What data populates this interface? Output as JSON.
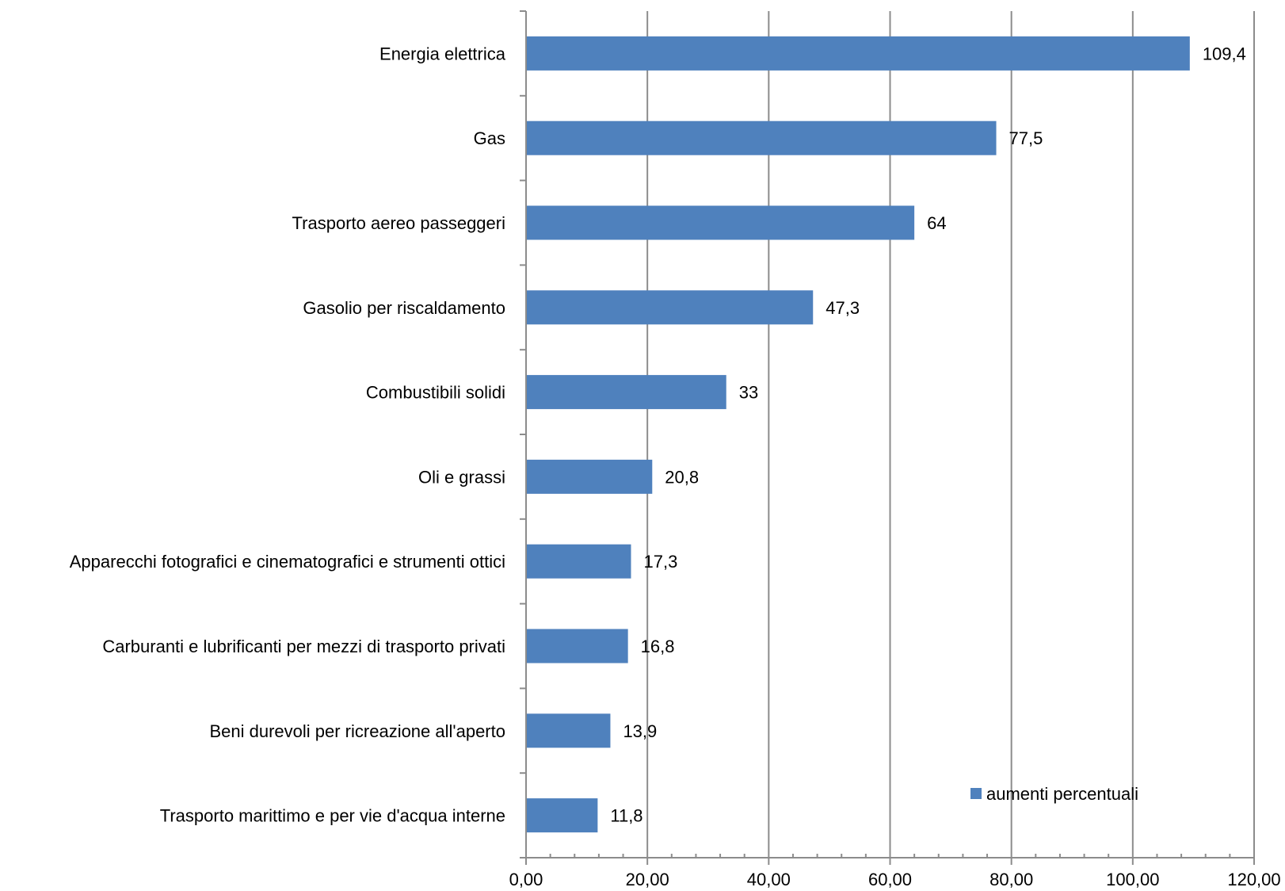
{
  "chart_data": {
    "type": "bar",
    "orientation": "horizontal",
    "categories": [
      "Energia elettrica",
      "Gas",
      "Trasporto aereo passeggeri",
      "Gasolio per riscaldamento",
      "Combustibili solidi",
      "Oli e grassi",
      "Apparecchi fotografici e cinematografici e strumenti ottici",
      "Carburanti e lubrificanti per mezzi di trasporto privati",
      "Beni durevoli per ricreazione all'aperto",
      "Trasporto marittimo e per vie d'acqua interne"
    ],
    "series": [
      {
        "name": "aumenti percentuali",
        "values": [
          109.4,
          77.5,
          64,
          47.3,
          33,
          20.8,
          17.3,
          16.8,
          13.9,
          11.8
        ],
        "labels": [
          "109,4",
          "77,5",
          "64",
          "47,3",
          "33",
          "20,8",
          "17,3",
          "16,8",
          "13,9",
          "11,8"
        ]
      }
    ],
    "x_ticks": [
      "0,00",
      "20,00",
      "40,00",
      "60,00",
      "80,00",
      "100,00",
      "120,00"
    ],
    "xlim": [
      0,
      120
    ],
    "grid": true,
    "legend_position": "bottom-right",
    "colors": {
      "bar": "#4f81bd",
      "grid": "#8c8c8c",
      "axis": "#8c8c8c"
    }
  }
}
